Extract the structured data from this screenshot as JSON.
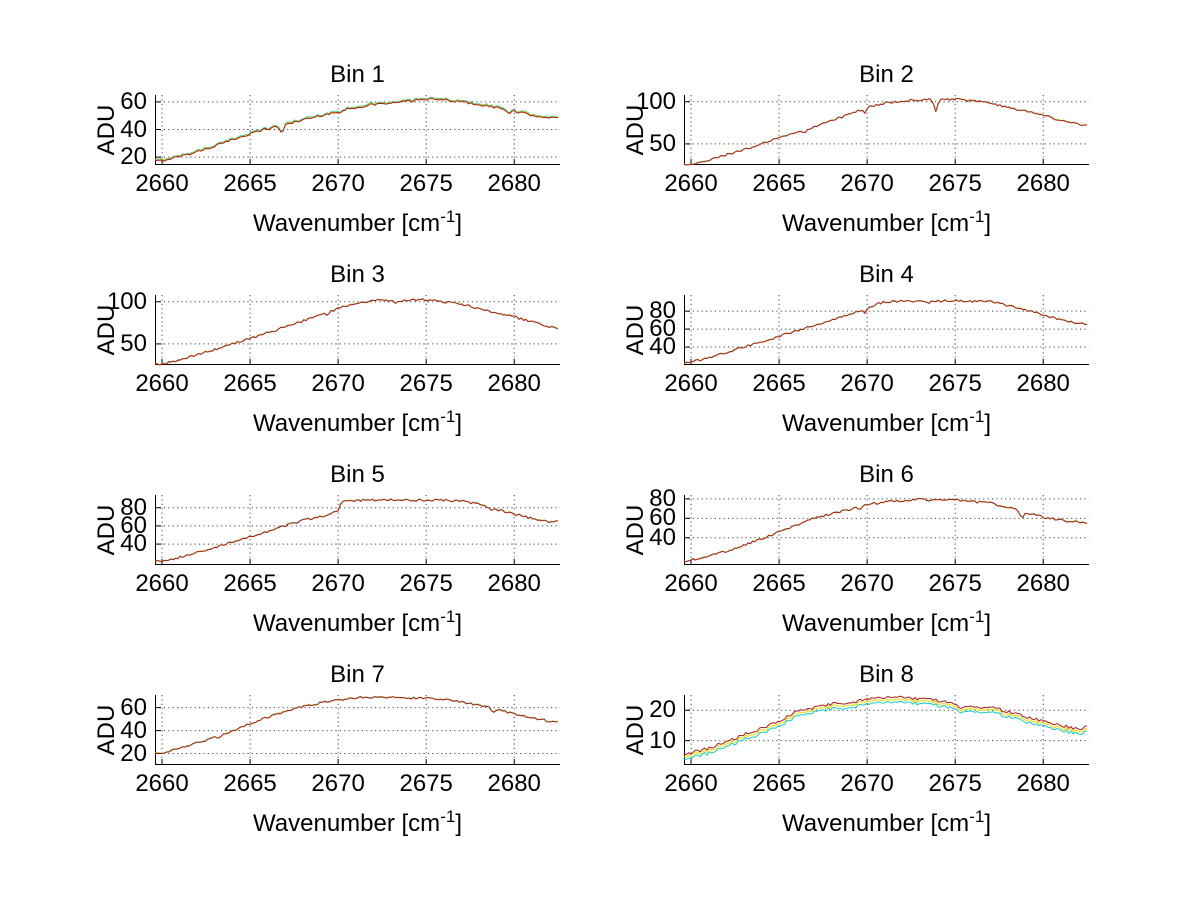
{
  "figure": {
    "background": "#ffffff",
    "axis_color": "#000000",
    "grid_color": "#444444"
  },
  "chart_data": {
    "type": "line",
    "grid": "dotted",
    "legend": "none",
    "xlabel": {
      "prefix": "Wavenumber [cm",
      "sup": "-1",
      "suffix": "]"
    },
    "ylabel": "ADU",
    "xlim": [
      2659.6,
      2682.6
    ],
    "xticks": [
      2660,
      2665,
      2670,
      2675,
      2680
    ],
    "series_colors": {
      "cyan": "#19c8c8",
      "yellow": "#e8dc00",
      "red": "#aa1c1c"
    },
    "series_order": [
      "cyan",
      "yellow",
      "red"
    ],
    "layout": {
      "rows": 4,
      "cols": 2,
      "col_lefts": [
        155,
        684
      ],
      "row_tops": [
        95,
        295,
        495,
        695
      ],
      "axes_width": 405,
      "axes_height": 70
    },
    "bins": [
      {
        "title": "Bin 1",
        "ylim": [
          14.3,
          65
        ],
        "yticks": [
          20,
          40,
          60
        ],
        "noise": 0.8,
        "offsets": {
          "cyan": 0.8,
          "yellow": 0.4,
          "red": 0
        },
        "spikes": [
          [
            2666.8,
            6
          ],
          [
            2670.1,
            2.5
          ],
          [
            2679.7,
            3
          ]
        ],
        "points": [
          [
            2659.6,
            17
          ],
          [
            2660,
            17.5
          ],
          [
            2661,
            20.5
          ],
          [
            2662,
            24
          ],
          [
            2663,
            28
          ],
          [
            2664,
            32.5
          ],
          [
            2665,
            37
          ],
          [
            2666,
            40.5
          ],
          [
            2667,
            43.5
          ],
          [
            2668,
            47
          ],
          [
            2669,
            50
          ],
          [
            2670,
            53
          ],
          [
            2670.4,
            54.5
          ],
          [
            2671,
            56
          ],
          [
            2672,
            58
          ],
          [
            2673,
            59
          ],
          [
            2674,
            60.5
          ],
          [
            2675,
            62
          ],
          [
            2676,
            61.5
          ],
          [
            2677,
            60
          ],
          [
            2678,
            58
          ],
          [
            2679,
            56
          ],
          [
            2680,
            53
          ],
          [
            2681,
            50.5
          ],
          [
            2682,
            48.5
          ],
          [
            2682.6,
            48
          ]
        ]
      },
      {
        "title": "Bin 2",
        "ylim": [
          25,
          108
        ],
        "yticks": [
          50,
          100
        ],
        "noise": 1.2,
        "offsets": {
          "cyan": 0.3,
          "yellow": 0.15,
          "red": 0
        },
        "spikes": [
          [
            2666.5,
            2
          ],
          [
            2669.9,
            5
          ],
          [
            2673.9,
            13
          ]
        ],
        "points": [
          [
            2659.6,
            25
          ],
          [
            2660,
            25.5
          ],
          [
            2661,
            31
          ],
          [
            2662,
            37
          ],
          [
            2663,
            43
          ],
          [
            2664,
            50
          ],
          [
            2665,
            57
          ],
          [
            2666,
            63
          ],
          [
            2667,
            70
          ],
          [
            2668,
            78
          ],
          [
            2669,
            85
          ],
          [
            2670,
            93
          ],
          [
            2671,
            98
          ],
          [
            2672,
            101
          ],
          [
            2673,
            102
          ],
          [
            2674,
            102.5
          ],
          [
            2675,
            103
          ],
          [
            2676,
            101
          ],
          [
            2677,
            98
          ],
          [
            2678,
            93.5
          ],
          [
            2679,
            89
          ],
          [
            2680,
            84
          ],
          [
            2681,
            78
          ],
          [
            2682,
            73
          ],
          [
            2682.6,
            71
          ]
        ]
      },
      {
        "title": "Bin 3",
        "ylim": [
          25,
          108
        ],
        "yticks": [
          50,
          100
        ],
        "noise": 1.3,
        "offsets": {
          "cyan": 0.3,
          "yellow": 0.15,
          "red": 0
        },
        "spikes": [
          [
            2669.4,
            4
          ],
          [
            2673.3,
            4
          ]
        ],
        "points": [
          [
            2659.6,
            25
          ],
          [
            2660,
            26
          ],
          [
            2661,
            31
          ],
          [
            2662,
            37
          ],
          [
            2663,
            43.5
          ],
          [
            2664,
            50
          ],
          [
            2665,
            56.5
          ],
          [
            2666,
            63
          ],
          [
            2667,
            70
          ],
          [
            2668,
            77
          ],
          [
            2669,
            84
          ],
          [
            2670,
            92
          ],
          [
            2671,
            98
          ],
          [
            2672,
            102
          ],
          [
            2673,
            101
          ],
          [
            2674,
            102
          ],
          [
            2675,
            102.5
          ],
          [
            2676,
            100
          ],
          [
            2677,
            97
          ],
          [
            2678,
            92
          ],
          [
            2679,
            87
          ],
          [
            2680,
            82
          ],
          [
            2681,
            76
          ],
          [
            2682,
            70
          ],
          [
            2682.6,
            68
          ]
        ]
      },
      {
        "title": "Bin 4",
        "ylim": [
          20,
          98
        ],
        "yticks": [
          40,
          60,
          80
        ],
        "noise": 1.2,
        "offsets": {
          "cyan": 0.3,
          "yellow": 0.15,
          "red": 0
        },
        "spikes": [
          [
            2669.9,
            6
          ],
          [
            2673.5,
            3
          ]
        ],
        "points": [
          [
            2659.6,
            23
          ],
          [
            2660,
            23.5
          ],
          [
            2661,
            28
          ],
          [
            2662,
            34
          ],
          [
            2663,
            40
          ],
          [
            2664,
            46
          ],
          [
            2665,
            52
          ],
          [
            2666,
            58
          ],
          [
            2667,
            64
          ],
          [
            2668,
            70
          ],
          [
            2669,
            76
          ],
          [
            2670,
            84
          ],
          [
            2670.6,
            88
          ],
          [
            2671,
            90
          ],
          [
            2672,
            91
          ],
          [
            2673,
            91.5
          ],
          [
            2674,
            91
          ],
          [
            2675,
            92
          ],
          [
            2676,
            91
          ],
          [
            2677,
            91
          ],
          [
            2678,
            86
          ],
          [
            2679,
            81
          ],
          [
            2680,
            76
          ],
          [
            2681,
            70
          ],
          [
            2682,
            66
          ],
          [
            2682.6,
            65.5
          ]
        ]
      },
      {
        "title": "Bin 5",
        "ylim": [
          17,
          94
        ],
        "yticks": [
          40,
          60,
          80
        ],
        "noise": 1.2,
        "offsets": {
          "cyan": 0.3,
          "yellow": 0.15,
          "red": 0
        },
        "spikes": [
          [
            2678.7,
            4
          ]
        ],
        "points": [
          [
            2659.6,
            21
          ],
          [
            2660,
            21.5
          ],
          [
            2661,
            25.5
          ],
          [
            2662,
            30.5
          ],
          [
            2663,
            36
          ],
          [
            2664,
            42
          ],
          [
            2665,
            48
          ],
          [
            2666,
            54
          ],
          [
            2667,
            60
          ],
          [
            2668,
            66
          ],
          [
            2669,
            70
          ],
          [
            2670,
            76
          ],
          [
            2670.2,
            87
          ],
          [
            2671,
            88
          ],
          [
            2672,
            88.5
          ],
          [
            2673,
            89
          ],
          [
            2674,
            88
          ],
          [
            2675,
            88.5
          ],
          [
            2676,
            88
          ],
          [
            2677,
            87
          ],
          [
            2678,
            84
          ],
          [
            2679,
            78
          ],
          [
            2680,
            73
          ],
          [
            2681,
            68
          ],
          [
            2682,
            64
          ],
          [
            2682.6,
            65
          ]
        ]
      },
      {
        "title": "Bin 6",
        "ylim": [
          12,
          84
        ],
        "yticks": [
          40,
          60,
          80
        ],
        "noise": 1.1,
        "offsets": {
          "cyan": 0.3,
          "yellow": 0.15,
          "red": 0
        },
        "spikes": [
          [
            2669.6,
            4
          ],
          [
            2678.8,
            8
          ]
        ],
        "points": [
          [
            2659.6,
            16
          ],
          [
            2660,
            17
          ],
          [
            2661,
            21
          ],
          [
            2662,
            26
          ],
          [
            2663,
            32
          ],
          [
            2664,
            39
          ],
          [
            2665,
            46
          ],
          [
            2666,
            53
          ],
          [
            2666.5,
            57
          ],
          [
            2667,
            60
          ],
          [
            2668,
            65
          ],
          [
            2669,
            69
          ],
          [
            2670,
            74
          ],
          [
            2671,
            77
          ],
          [
            2672,
            78
          ],
          [
            2673,
            79.5
          ],
          [
            2674,
            78.5
          ],
          [
            2675,
            79
          ],
          [
            2676,
            77
          ],
          [
            2677,
            75.5
          ],
          [
            2678,
            71
          ],
          [
            2679,
            66
          ],
          [
            2680,
            61
          ],
          [
            2681,
            58
          ],
          [
            2682,
            56
          ],
          [
            2682.6,
            55.5
          ]
        ]
      },
      {
        "title": "Bin 7",
        "ylim": [
          10,
          71
        ],
        "yticks": [
          20,
          40,
          60
        ],
        "noise": 0.9,
        "offsets": {
          "cyan": 0.3,
          "yellow": 0.15,
          "red": 0
        },
        "spikes": [
          [
            2663.2,
            2
          ],
          [
            2678.8,
            5
          ]
        ],
        "points": [
          [
            2659.6,
            20
          ],
          [
            2660,
            20.5
          ],
          [
            2661,
            24.5
          ],
          [
            2662,
            29
          ],
          [
            2663,
            34
          ],
          [
            2664,
            40
          ],
          [
            2665,
            46
          ],
          [
            2666,
            51.5
          ],
          [
            2667,
            56.5
          ],
          [
            2668,
            61
          ],
          [
            2669,
            64
          ],
          [
            2670,
            66.5
          ],
          [
            2671,
            68.5
          ],
          [
            2672,
            69
          ],
          [
            2673,
            69
          ],
          [
            2674,
            68.5
          ],
          [
            2675,
            68
          ],
          [
            2676,
            67
          ],
          [
            2677,
            65
          ],
          [
            2678,
            62
          ],
          [
            2679,
            58.5
          ],
          [
            2680,
            54.5
          ],
          [
            2681,
            51
          ],
          [
            2682,
            48
          ],
          [
            2682.6,
            47.5
          ]
        ]
      },
      {
        "title": "Bin 8",
        "ylim": [
          2,
          25
        ],
        "yticks": [
          10,
          20
        ],
        "noise": 0.5,
        "offsets": {
          "cyan": -1.6,
          "yellow": -0.8,
          "red": 0
        },
        "spikes": [
          [
            2675.3,
            1.5
          ]
        ],
        "points": [
          [
            2659.6,
            5.5
          ],
          [
            2660,
            6
          ],
          [
            2661,
            7.5
          ],
          [
            2662,
            9.5
          ],
          [
            2663,
            12
          ],
          [
            2664,
            14
          ],
          [
            2665,
            16.5
          ],
          [
            2665.5,
            18
          ],
          [
            2666,
            19.5
          ],
          [
            2667,
            21
          ],
          [
            2668,
            22
          ],
          [
            2669,
            22.5
          ],
          [
            2670,
            23.5
          ],
          [
            2671,
            24
          ],
          [
            2672,
            24.3
          ],
          [
            2673,
            23.8
          ],
          [
            2674,
            23.2
          ],
          [
            2675,
            22.3
          ],
          [
            2676,
            21
          ],
          [
            2677,
            21
          ],
          [
            2678,
            19.5
          ],
          [
            2679,
            18
          ],
          [
            2680,
            16.5
          ],
          [
            2681,
            15
          ],
          [
            2682,
            14
          ],
          [
            2682.6,
            14.5
          ]
        ]
      }
    ]
  }
}
